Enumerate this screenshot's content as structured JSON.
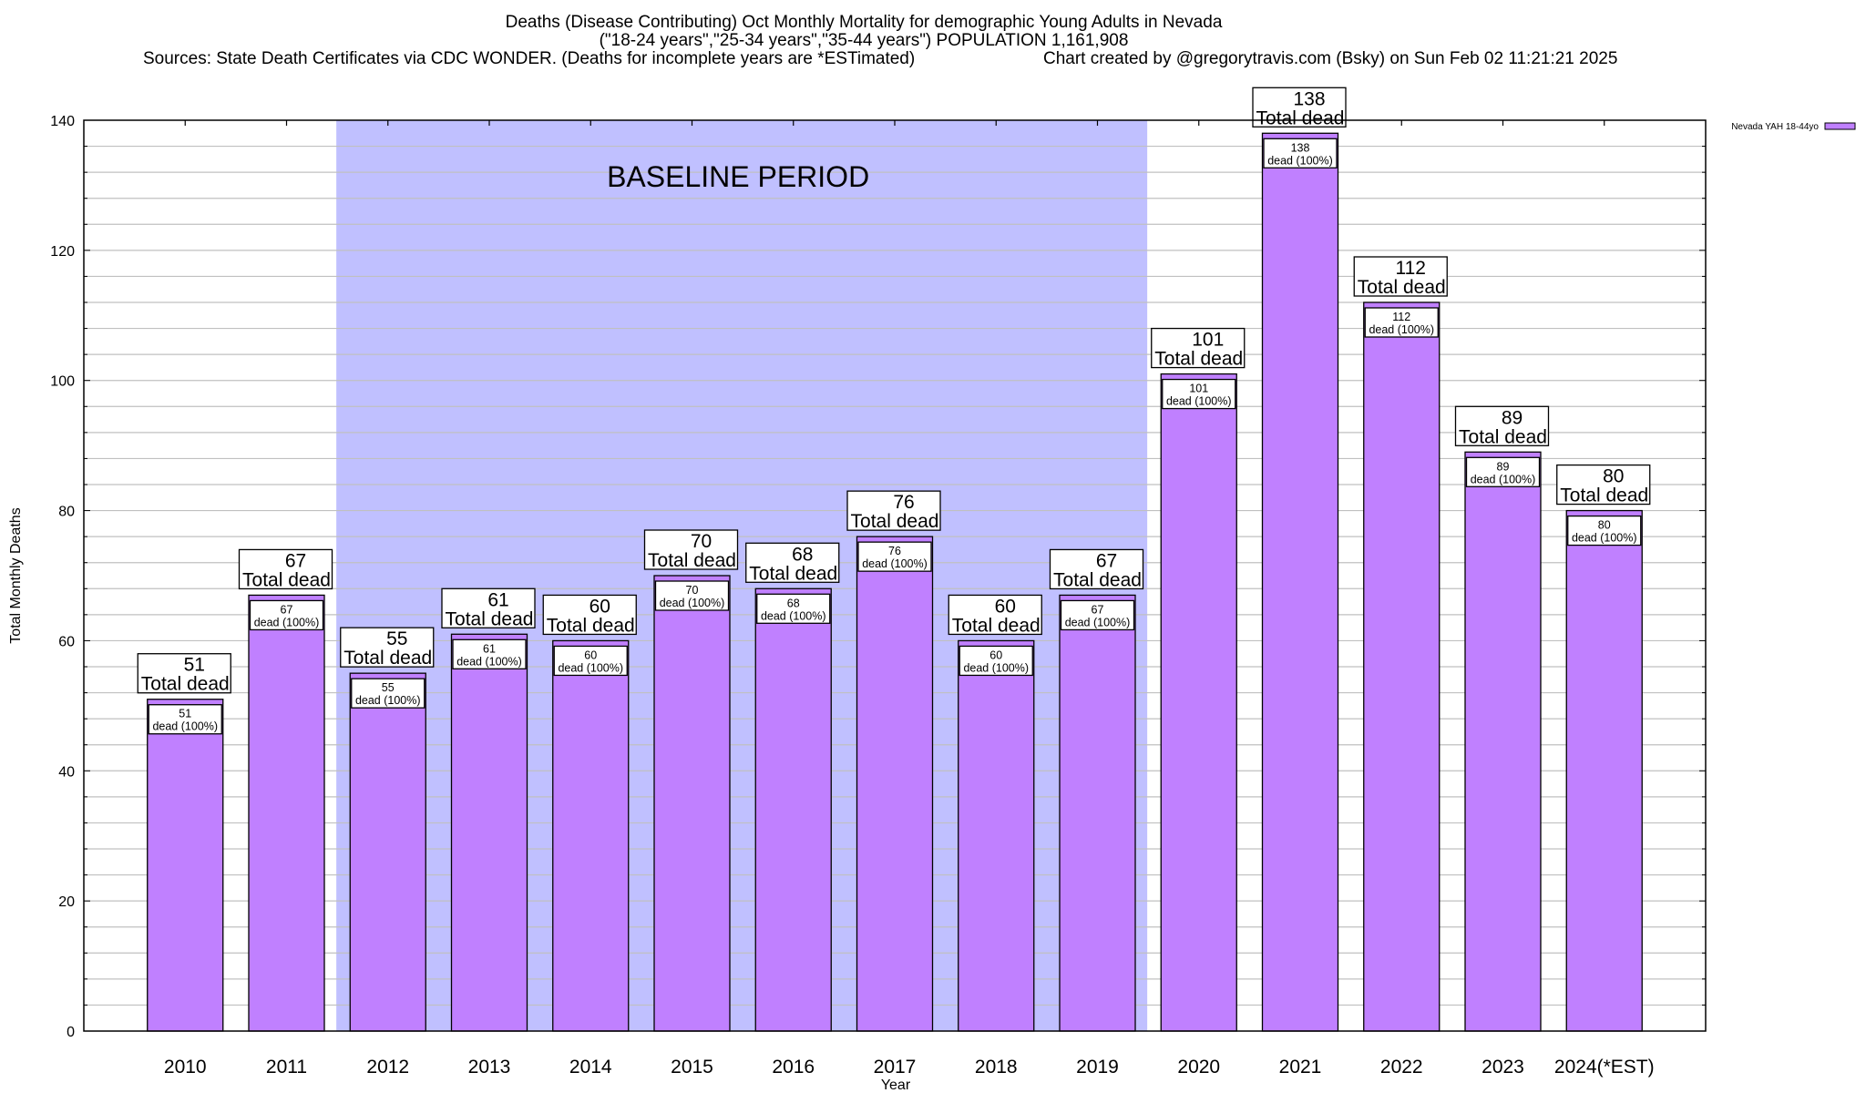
{
  "chart_data": {
    "type": "bar",
    "title_lines": [
      "Deaths (Disease Contributing) Oct Monthly Mortality for demographic Young Adults in Nevada",
      "(\"18-24 years\",\"25-34 years\",\"35-44 years\") POPULATION 1,161,908"
    ],
    "sources": "Sources: State Death Certificates via CDC WONDER. (Deaths for incomplete years are *ESTimated)",
    "credit": "Chart created by @gregorytravis.com (Bsky) on Sun Feb 02 11:21:21 2025",
    "xlabel": "Year",
    "ylabel": "Total Monthly Deaths",
    "ylim": [
      0,
      140
    ],
    "yticks": [
      0,
      20,
      40,
      60,
      80,
      100,
      120,
      140
    ],
    "minor_tick_step": 4,
    "grid": true,
    "categories": [
      "2010",
      "2011",
      "2012",
      "2013",
      "2014",
      "2015",
      "2016",
      "2017",
      "2018",
      "2019",
      "2020",
      "2021",
      "2022",
      "2023",
      "2024(*EST)"
    ],
    "series": [
      {
        "name": "Nevada YAH 18-44yo",
        "color": "#c080ff",
        "values": [
          51,
          67,
          55,
          61,
          60,
          70,
          68,
          76,
          60,
          67,
          101,
          138,
          112,
          89,
          80
        ]
      }
    ],
    "total_label_suffix": "Total dead",
    "inner_label_suffix": "dead (100%)",
    "baseline": {
      "label": "BASELINE PERIOD",
      "start": "2012",
      "end": "2019",
      "color": "#c0c0ff"
    },
    "legend": {
      "position": "top-right",
      "label": "Nevada YAH 18-44yo"
    }
  }
}
